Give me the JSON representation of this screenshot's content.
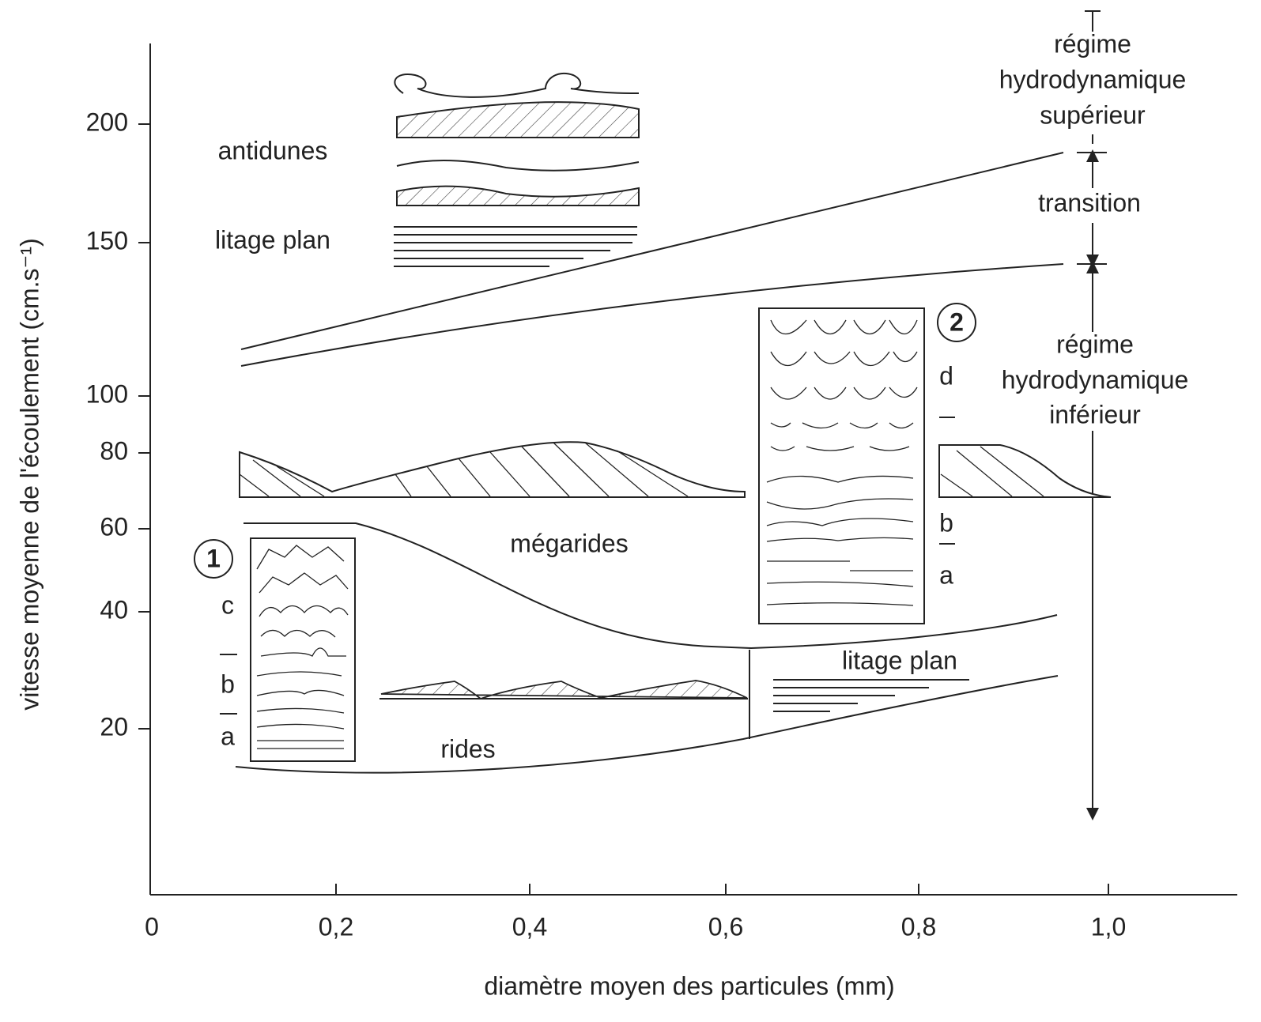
{
  "axes": {
    "y_label": "vitesse moyenne de l'écoulement (cm.s⁻¹)",
    "x_label": "diamètre moyen des particules (mm)",
    "y_ticks": [
      "200",
      "150",
      "100",
      "80",
      "60",
      "40",
      "20"
    ],
    "x_ticks": [
      "0",
      "0,2",
      "0,4",
      "0,6",
      "0,8",
      "1,0"
    ]
  },
  "regions": {
    "antidunes": "antidunes",
    "upper_plane_bed": "litage plan",
    "megaripples": "mégarides",
    "ripples": "rides",
    "lower_plane_bed": "litage plan"
  },
  "regimes": {
    "upper": [
      "régime",
      "hydrodynamique",
      "supérieur"
    ],
    "transition": "transition",
    "lower": [
      "régime",
      "hydrodynamique",
      "inférieur"
    ]
  },
  "sketch_1": {
    "number": "1",
    "labels": [
      "c",
      "b",
      "a"
    ]
  },
  "sketch_2": {
    "number": "2",
    "labels": [
      "d",
      "b",
      "a"
    ]
  }
}
